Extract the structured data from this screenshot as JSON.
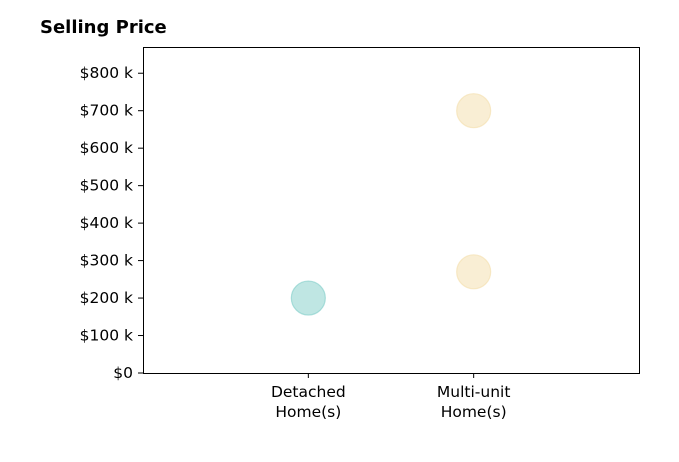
{
  "chart_data": {
    "type": "scatter",
    "title": "Selling Price",
    "xlabel": "",
    "ylabel": "",
    "categories": [
      [
        "Detached",
        "Home(s)"
      ],
      [
        "Multi-unit",
        "Home(s)"
      ]
    ],
    "y_ticks": [
      {
        "value": 0,
        "label": "$0"
      },
      {
        "value": 100,
        "label": "$100 k"
      },
      {
        "value": 200,
        "label": "$200 k"
      },
      {
        "value": 300,
        "label": "$300 k"
      },
      {
        "value": 400,
        "label": "$400 k"
      },
      {
        "value": 500,
        "label": "$500 k"
      },
      {
        "value": 600,
        "label": "$600 k"
      },
      {
        "value": 700,
        "label": "$700 k"
      },
      {
        "value": 800,
        "label": "$800 k"
      }
    ],
    "ylim": [
      0,
      870
    ],
    "y_unit": "$ thousands",
    "grid": false,
    "points": [
      {
        "category": 0,
        "value": 200,
        "color": "#7fcdc8"
      },
      {
        "category": 1,
        "value": 270,
        "color": "#f3ddaa"
      },
      {
        "category": 1,
        "value": 700,
        "color": "#f3ddaa"
      }
    ]
  }
}
